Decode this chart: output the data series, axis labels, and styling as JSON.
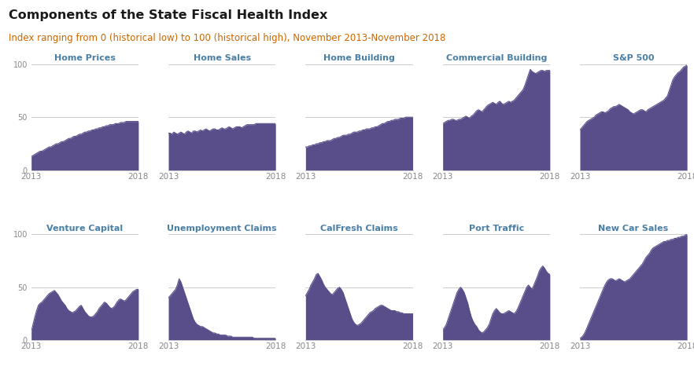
{
  "title": "Components of the State Fiscal Health Index",
  "subtitle": "Index ranging from 0 (historical low) to 100 (historical high), November 2013-November 2018",
  "title_color": "#1a1a1a",
  "subtitle_color": "#cc6600",
  "fill_color": "#5a4e8a",
  "background_color": "#ffffff",
  "grid_color": "#cccccc",
  "label_color": "#4a7fa5",
  "axis_color": "#888888",
  "ylim": [
    0,
    100
  ],
  "yticks": [
    0,
    50,
    100
  ],
  "n_points": 61,
  "charts": [
    {
      "title": "Home Prices",
      "values": [
        13,
        14,
        15,
        16,
        17,
        18,
        18,
        19,
        20,
        21,
        22,
        22,
        23,
        24,
        25,
        25,
        26,
        27,
        27,
        28,
        29,
        30,
        30,
        31,
        32,
        32,
        33,
        34,
        34,
        35,
        36,
        36,
        37,
        37,
        38,
        38,
        39,
        39,
        40,
        40,
        41,
        41,
        42,
        42,
        43,
        43,
        43,
        44,
        44,
        44,
        45,
        45,
        45,
        46,
        46,
        46,
        46,
        46,
        46,
        46,
        46
      ]
    },
    {
      "title": "Home Sales",
      "values": [
        35,
        35,
        34,
        36,
        35,
        34,
        35,
        36,
        35,
        34,
        36,
        37,
        36,
        35,
        37,
        37,
        36,
        37,
        38,
        37,
        38,
        39,
        38,
        37,
        38,
        39,
        39,
        38,
        38,
        39,
        40,
        39,
        39,
        40,
        41,
        40,
        39,
        40,
        41,
        41,
        41,
        40,
        41,
        42,
        43,
        43,
        43,
        43,
        43,
        44,
        44,
        44,
        44,
        44,
        44,
        44,
        44,
        44,
        44,
        44,
        44
      ]
    },
    {
      "title": "Home Building",
      "values": [
        22,
        22,
        23,
        23,
        24,
        24,
        25,
        25,
        26,
        26,
        27,
        27,
        28,
        28,
        28,
        29,
        30,
        30,
        31,
        31,
        32,
        33,
        33,
        33,
        34,
        34,
        35,
        36,
        36,
        36,
        37,
        37,
        38,
        38,
        39,
        39,
        39,
        40,
        40,
        41,
        41,
        42,
        43,
        44,
        44,
        45,
        46,
        46,
        47,
        47,
        48,
        48,
        48,
        49,
        49,
        49,
        50,
        50,
        50,
        50,
        50
      ]
    },
    {
      "title": "Commercial Building",
      "values": [
        44,
        45,
        46,
        47,
        47,
        48,
        48,
        47,
        47,
        48,
        48,
        49,
        50,
        51,
        50,
        49,
        51,
        52,
        54,
        56,
        57,
        56,
        55,
        57,
        59,
        61,
        62,
        63,
        64,
        63,
        62,
        64,
        65,
        63,
        62,
        63,
        64,
        65,
        64,
        65,
        66,
        68,
        70,
        72,
        74,
        76,
        80,
        85,
        90,
        95,
        93,
        92,
        91,
        92,
        93,
        94,
        94,
        93,
        94,
        94,
        94
      ]
    },
    {
      "title": "S&P 500",
      "values": [
        38,
        40,
        42,
        44,
        46,
        47,
        48,
        49,
        50,
        52,
        53,
        54,
        55,
        55,
        54,
        55,
        56,
        58,
        59,
        60,
        60,
        61,
        62,
        61,
        60,
        59,
        58,
        57,
        55,
        54,
        53,
        54,
        55,
        56,
        57,
        57,
        56,
        55,
        57,
        58,
        59,
        60,
        61,
        62,
        63,
        64,
        65,
        66,
        68,
        70,
        75,
        80,
        85,
        88,
        90,
        92,
        93,
        95,
        97,
        98,
        99
      ]
    },
    {
      "title": "Venture Capital",
      "values": [
        8,
        15,
        22,
        28,
        33,
        35,
        36,
        38,
        40,
        42,
        44,
        45,
        46,
        47,
        45,
        43,
        40,
        37,
        35,
        33,
        30,
        28,
        27,
        26,
        27,
        28,
        30,
        32,
        33,
        30,
        27,
        25,
        23,
        22,
        22,
        23,
        25,
        27,
        30,
        32,
        34,
        36,
        35,
        33,
        31,
        30,
        31,
        33,
        36,
        38,
        39,
        38,
        37,
        38,
        40,
        42,
        44,
        46,
        47,
        48,
        48
      ]
    },
    {
      "title": "Unemployment Claims",
      "values": [
        40,
        42,
        44,
        46,
        48,
        52,
        58,
        55,
        50,
        45,
        40,
        35,
        30,
        25,
        20,
        17,
        15,
        14,
        13,
        13,
        12,
        11,
        10,
        9,
        8,
        7,
        7,
        6,
        6,
        5,
        5,
        5,
        5,
        4,
        4,
        4,
        3,
        3,
        3,
        3,
        3,
        3,
        3,
        3,
        3,
        3,
        3,
        3,
        2,
        2,
        2,
        2,
        2,
        2,
        2,
        2,
        2,
        2,
        2,
        2,
        2
      ]
    },
    {
      "title": "CalFresh Claims",
      "values": [
        42,
        45,
        48,
        52,
        55,
        58,
        62,
        63,
        60,
        57,
        53,
        50,
        48,
        46,
        44,
        43,
        45,
        47,
        49,
        50,
        48,
        45,
        40,
        35,
        30,
        25,
        20,
        17,
        15,
        14,
        15,
        16,
        18,
        20,
        22,
        24,
        26,
        27,
        28,
        30,
        31,
        32,
        33,
        33,
        32,
        31,
        30,
        29,
        28,
        28,
        28,
        27,
        27,
        26,
        26,
        25,
        25,
        25,
        25,
        25,
        25
      ]
    },
    {
      "title": "Port Traffic",
      "values": [
        10,
        12,
        15,
        20,
        25,
        30,
        35,
        40,
        45,
        48,
        50,
        48,
        45,
        40,
        35,
        28,
        22,
        18,
        15,
        13,
        10,
        8,
        7,
        8,
        10,
        12,
        15,
        20,
        25,
        28,
        30,
        28,
        26,
        25,
        25,
        26,
        27,
        28,
        27,
        26,
        25,
        27,
        30,
        34,
        38,
        42,
        46,
        50,
        52,
        50,
        48,
        52,
        56,
        60,
        65,
        68,
        70,
        68,
        65,
        63,
        62
      ]
    },
    {
      "title": "New Car Sales",
      "values": [
        2,
        3,
        5,
        8,
        12,
        16,
        20,
        24,
        28,
        32,
        36,
        40,
        44,
        48,
        52,
        55,
        57,
        58,
        58,
        57,
        56,
        57,
        58,
        57,
        56,
        55,
        56,
        57,
        58,
        60,
        62,
        64,
        66,
        68,
        70,
        72,
        75,
        78,
        80,
        82,
        85,
        87,
        88,
        89,
        90,
        91,
        92,
        93,
        93,
        94,
        94,
        95,
        95,
        96,
        96,
        97,
        97,
        98,
        98,
        99,
        100
      ]
    }
  ]
}
